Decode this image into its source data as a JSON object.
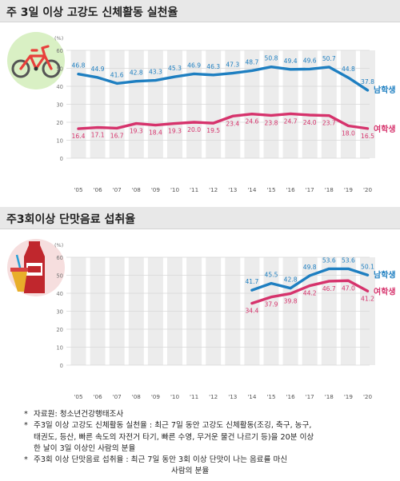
{
  "colors": {
    "male": "#1e7fc1",
    "female": "#d6336c",
    "column_bg": "#ececec",
    "gridline": "#d9d9d9",
    "title_bg": "#e8e8e8"
  },
  "icons": [
    "bicycle-icon",
    "soda-drink-icon"
  ],
  "chart_data": [
    {
      "type": "line",
      "title": "주 3일 이상 고강도 신체활동 실천율",
      "ylabel": "(%)",
      "ylim": [
        0,
        60
      ],
      "yticks": [
        "0",
        "10",
        "20",
        "30",
        "40",
        "50",
        "60"
      ],
      "categories": [
        "'05",
        "'06",
        "'07",
        "'08",
        "'09",
        "'10",
        "'11",
        "'12",
        "'13",
        "'14",
        "'15",
        "'16",
        "'17",
        "'18",
        "'19",
        "'20"
      ],
      "series": [
        {
          "name": "남학생",
          "color": "#1e7fc1",
          "values": [
            46.8,
            44.9,
            41.6,
            42.8,
            43.3,
            45.3,
            46.9,
            46.3,
            47.3,
            48.7,
            50.8,
            49.4,
            49.6,
            50.7,
            44.8,
            37.8
          ],
          "labels": [
            "46.8",
            "44.9",
            "41.6",
            "42.8",
            "43.3",
            "45.3",
            "46.9",
            "46.3",
            "47.3",
            "48.7",
            "50.8",
            "49.4",
            "49.6",
            "50.7",
            "44.8",
            "37.8"
          ]
        },
        {
          "name": "여학생",
          "color": "#d6336c",
          "values": [
            16.4,
            17.1,
            16.7,
            19.3,
            18.4,
            19.3,
            20.0,
            19.5,
            23.4,
            24.6,
            23.8,
            24.7,
            24.0,
            23.7,
            18.0,
            16.5
          ],
          "labels": [
            "16.4",
            "17.1",
            "16.7",
            "19.3",
            "18.4",
            "19.3",
            "20.0",
            "19.5",
            "23.4",
            "24.6",
            "23.8",
            "24.7",
            "24.0",
            "23.7",
            "18.0",
            "16.5"
          ]
        }
      ],
      "grid": true
    },
    {
      "type": "line",
      "title": "주3회이상 단맛음료 섭취율",
      "ylabel": "(%)",
      "ylim": [
        0,
        60
      ],
      "yticks": [
        "0",
        "10",
        "20",
        "30",
        "40",
        "50",
        "60"
      ],
      "categories": [
        "'05",
        "'06",
        "'07",
        "'08",
        "'09",
        "'10",
        "'11",
        "'12",
        "'13",
        "'14",
        "'15",
        "'16",
        "'17",
        "'18",
        "'19",
        "'20"
      ],
      "series": [
        {
          "name": "남학생",
          "color": "#1e7fc1",
          "values": [
            null,
            null,
            null,
            null,
            null,
            null,
            null,
            null,
            null,
            41.7,
            45.5,
            42.8,
            49.8,
            53.6,
            53.6,
            50.1
          ],
          "labels": [
            null,
            null,
            null,
            null,
            null,
            null,
            null,
            null,
            null,
            "41.7",
            "45.5",
            "42.8",
            "49.8",
            "53.6",
            "53.6",
            "50.1"
          ]
        },
        {
          "name": "여학생",
          "color": "#d6336c",
          "values": [
            null,
            null,
            null,
            null,
            null,
            null,
            null,
            null,
            null,
            34.4,
            37.9,
            39.8,
            44.2,
            46.7,
            47.0,
            41.2
          ],
          "labels": [
            null,
            null,
            null,
            null,
            null,
            null,
            null,
            null,
            null,
            "34.4",
            "37.9",
            "39.8",
            "44.2",
            "46.7",
            "47.0",
            "41.2"
          ]
        }
      ],
      "grid": true
    }
  ],
  "notes": {
    "marker": "*",
    "source": "자료원: 청소년건강행태조사",
    "def1_line1": "주3일 이상 고강도 신체활동 실천율 : 최근 7일 동안 고강도 신체활동(조깅, 축구, 농구,",
    "def1_line2": "태권도, 등산, 빠른 속도의 자전거 타기, 빠른 수영, 무거운 물건 나르기 등)을 20분 이상",
    "def1_line3": "한 날이 3일 이상인 사람의 분율",
    "def2_line1": "주3회 이상 단맛음료 섭취율 : 최근 7일 동안 3회 이상 단맛이 나는 음료를 마신",
    "def2_line2": "사람의 분율"
  }
}
